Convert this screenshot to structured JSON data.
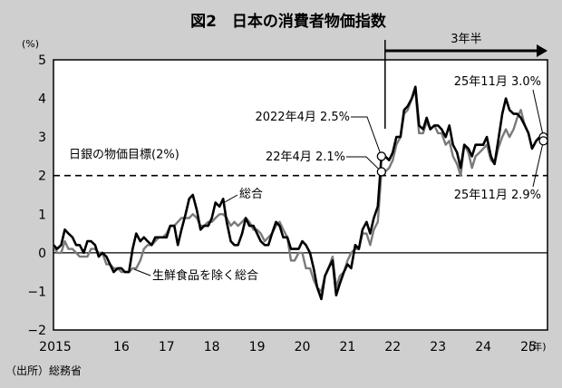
{
  "chart_data": {
    "type": "line",
    "title": "図2　日本の消費者物価指数",
    "ylabel": "(%)",
    "xlabel": "(年)",
    "source": "（出所）総務省",
    "ylim": [
      -2,
      5
    ],
    "xlim": [
      2015.0,
      2025.92
    ],
    "y_ticks": [
      -2,
      -1,
      0,
      1,
      2,
      3,
      4,
      5
    ],
    "y_tick_labels": [
      "−2",
      "−1",
      "0",
      "1",
      "2",
      "3",
      "4",
      "5"
    ],
    "x_tick_labels": [
      {
        "x": 2015.0,
        "label": "2015"
      },
      {
        "x": 2016.0,
        "label": "16"
      },
      {
        "x": 2017.0,
        "label": "17"
      },
      {
        "x": 2018.0,
        "label": "18"
      },
      {
        "x": 2019.0,
        "label": "19"
      },
      {
        "x": 2020.0,
        "label": "20"
      },
      {
        "x": 2021.0,
        "label": "21"
      },
      {
        "x": 2022.0,
        "label": "22"
      },
      {
        "x": 2023.0,
        "label": "23"
      },
      {
        "x": 2024.0,
        "label": "24"
      },
      {
        "x": 2025.0,
        "label": "25"
      }
    ],
    "reference_line": {
      "y": 2,
      "label": "日銀の物価目標(2%)"
    },
    "arrow": {
      "label": "3年半",
      "from": 2022.33,
      "to": 2025.92
    },
    "series": [
      {
        "name": "総合",
        "color": "#000000",
        "points": [
          [
            2015.0,
            0.2
          ],
          [
            2015.08,
            0.1
          ],
          [
            2015.17,
            0.2
          ],
          [
            2015.25,
            0.6
          ],
          [
            2015.33,
            0.5
          ],
          [
            2015.42,
            0.4
          ],
          [
            2015.5,
            0.2
          ],
          [
            2015.58,
            0.2
          ],
          [
            2015.67,
            0.0
          ],
          [
            2015.75,
            0.3
          ],
          [
            2015.83,
            0.3
          ],
          [
            2015.92,
            0.2
          ],
          [
            2016.0,
            -0.1
          ],
          [
            2016.08,
            0.0
          ],
          [
            2016.17,
            -0.1
          ],
          [
            2016.25,
            -0.3
          ],
          [
            2016.33,
            -0.5
          ],
          [
            2016.42,
            -0.4
          ],
          [
            2016.5,
            -0.4
          ],
          [
            2016.58,
            -0.5
          ],
          [
            2016.67,
            -0.5
          ],
          [
            2016.75,
            0.1
          ],
          [
            2016.83,
            0.5
          ],
          [
            2016.92,
            0.3
          ],
          [
            2017.0,
            0.4
          ],
          [
            2017.08,
            0.3
          ],
          [
            2017.17,
            0.2
          ],
          [
            2017.25,
            0.4
          ],
          [
            2017.33,
            0.4
          ],
          [
            2017.42,
            0.4
          ],
          [
            2017.5,
            0.4
          ],
          [
            2017.58,
            0.7
          ],
          [
            2017.67,
            0.7
          ],
          [
            2017.75,
            0.2
          ],
          [
            2017.83,
            0.6
          ],
          [
            2017.92,
            1.0
          ],
          [
            2018.0,
            1.4
          ],
          [
            2018.08,
            1.5
          ],
          [
            2018.17,
            1.1
          ],
          [
            2018.25,
            0.6
          ],
          [
            2018.33,
            0.7
          ],
          [
            2018.42,
            0.7
          ],
          [
            2018.5,
            0.9
          ],
          [
            2018.58,
            1.3
          ],
          [
            2018.67,
            1.2
          ],
          [
            2018.75,
            1.4
          ],
          [
            2018.83,
            0.8
          ],
          [
            2018.92,
            0.3
          ],
          [
            2019.0,
            0.2
          ],
          [
            2019.08,
            0.2
          ],
          [
            2019.17,
            0.5
          ],
          [
            2019.25,
            0.9
          ],
          [
            2019.33,
            0.7
          ],
          [
            2019.42,
            0.7
          ],
          [
            2019.5,
            0.5
          ],
          [
            2019.58,
            0.3
          ],
          [
            2019.67,
            0.2
          ],
          [
            2019.75,
            0.2
          ],
          [
            2019.83,
            0.5
          ],
          [
            2019.92,
            0.8
          ],
          [
            2020.0,
            0.7
          ],
          [
            2020.08,
            0.4
          ],
          [
            2020.17,
            0.4
          ],
          [
            2020.25,
            0.1
          ],
          [
            2020.33,
            0.1
          ],
          [
            2020.42,
            0.1
          ],
          [
            2020.5,
            0.3
          ],
          [
            2020.58,
            0.2
          ],
          [
            2020.67,
            0.0
          ],
          [
            2020.75,
            -0.4
          ],
          [
            2020.83,
            -0.9
          ],
          [
            2020.92,
            -1.2
          ],
          [
            2021.0,
            -0.6
          ],
          [
            2021.08,
            -0.4
          ],
          [
            2021.17,
            -0.2
          ],
          [
            2021.25,
            -1.1
          ],
          [
            2021.33,
            -0.8
          ],
          [
            2021.42,
            -0.5
          ],
          [
            2021.5,
            -0.3
          ],
          [
            2021.58,
            -0.4
          ],
          [
            2021.67,
            0.2
          ],
          [
            2021.75,
            0.1
          ],
          [
            2021.83,
            0.6
          ],
          [
            2021.92,
            0.8
          ],
          [
            2022.0,
            0.5
          ],
          [
            2022.08,
            0.9
          ],
          [
            2022.17,
            1.2
          ],
          [
            2022.25,
            2.5
          ],
          [
            2022.33,
            2.5
          ],
          [
            2022.42,
            2.4
          ],
          [
            2022.5,
            2.6
          ],
          [
            2022.58,
            3.0
          ],
          [
            2022.67,
            3.0
          ],
          [
            2022.75,
            3.7
          ],
          [
            2022.83,
            3.8
          ],
          [
            2022.92,
            4.0
          ],
          [
            2023.0,
            4.3
          ],
          [
            2023.08,
            3.3
          ],
          [
            2023.17,
            3.2
          ],
          [
            2023.25,
            3.5
          ],
          [
            2023.33,
            3.2
          ],
          [
            2023.42,
            3.3
          ],
          [
            2023.5,
            3.3
          ],
          [
            2023.58,
            3.2
          ],
          [
            2023.67,
            3.0
          ],
          [
            2023.75,
            3.3
          ],
          [
            2023.83,
            2.8
          ],
          [
            2023.92,
            2.6
          ],
          [
            2024.0,
            2.2
          ],
          [
            2024.08,
            2.8
          ],
          [
            2024.17,
            2.7
          ],
          [
            2024.25,
            2.5
          ],
          [
            2024.33,
            2.8
          ],
          [
            2024.42,
            2.8
          ],
          [
            2024.5,
            2.8
          ],
          [
            2024.58,
            3.0
          ],
          [
            2024.67,
            2.5
          ],
          [
            2024.75,
            2.3
          ],
          [
            2024.83,
            2.9
          ],
          [
            2024.92,
            3.6
          ],
          [
            2025.0,
            4.0
          ],
          [
            2025.08,
            3.7
          ],
          [
            2025.17,
            3.6
          ],
          [
            2025.25,
            3.6
          ],
          [
            2025.33,
            3.5
          ],
          [
            2025.42,
            3.3
          ],
          [
            2025.5,
            3.1
          ],
          [
            2025.58,
            2.7
          ],
          [
            2025.67,
            2.9
          ],
          [
            2025.75,
            3.0
          ],
          [
            2025.83,
            3.0
          ]
        ]
      },
      {
        "name": "生鮮食品を除く総合",
        "color": "#7a7a7a",
        "points": [
          [
            2015.0,
            0.2
          ],
          [
            2015.08,
            0.0
          ],
          [
            2015.17,
            0.0
          ],
          [
            2015.25,
            0.3
          ],
          [
            2015.33,
            0.1
          ],
          [
            2015.42,
            0.1
          ],
          [
            2015.5,
            0.0
          ],
          [
            2015.58,
            -0.1
          ],
          [
            2015.67,
            -0.1
          ],
          [
            2015.75,
            -0.1
          ],
          [
            2015.83,
            0.1
          ],
          [
            2015.92,
            0.1
          ],
          [
            2016.0,
            0.0
          ],
          [
            2016.08,
            0.0
          ],
          [
            2016.17,
            -0.3
          ],
          [
            2016.25,
            -0.3
          ],
          [
            2016.33,
            -0.4
          ],
          [
            2016.42,
            -0.4
          ],
          [
            2016.5,
            -0.5
          ],
          [
            2016.58,
            -0.5
          ],
          [
            2016.67,
            -0.5
          ],
          [
            2016.75,
            -0.4
          ],
          [
            2016.83,
            -0.4
          ],
          [
            2016.92,
            -0.2
          ],
          [
            2017.0,
            0.1
          ],
          [
            2017.08,
            0.2
          ],
          [
            2017.17,
            0.2
          ],
          [
            2017.25,
            0.3
          ],
          [
            2017.33,
            0.4
          ],
          [
            2017.42,
            0.4
          ],
          [
            2017.5,
            0.5
          ],
          [
            2017.58,
            0.7
          ],
          [
            2017.67,
            0.7
          ],
          [
            2017.75,
            0.8
          ],
          [
            2017.83,
            0.9
          ],
          [
            2017.92,
            0.9
          ],
          [
            2018.0,
            0.9
          ],
          [
            2018.08,
            1.0
          ],
          [
            2018.17,
            0.9
          ],
          [
            2018.25,
            0.7
          ],
          [
            2018.33,
            0.7
          ],
          [
            2018.42,
            0.8
          ],
          [
            2018.5,
            0.8
          ],
          [
            2018.58,
            0.9
          ],
          [
            2018.67,
            1.0
          ],
          [
            2018.75,
            1.0
          ],
          [
            2018.83,
            0.9
          ],
          [
            2018.92,
            0.7
          ],
          [
            2019.0,
            0.8
          ],
          [
            2019.08,
            0.7
          ],
          [
            2019.17,
            0.8
          ],
          [
            2019.25,
            0.9
          ],
          [
            2019.33,
            0.8
          ],
          [
            2019.42,
            0.6
          ],
          [
            2019.5,
            0.6
          ],
          [
            2019.58,
            0.5
          ],
          [
            2019.67,
            0.3
          ],
          [
            2019.75,
            0.4
          ],
          [
            2019.83,
            0.5
          ],
          [
            2019.92,
            0.7
          ],
          [
            2020.0,
            0.8
          ],
          [
            2020.08,
            0.6
          ],
          [
            2020.17,
            0.4
          ],
          [
            2020.25,
            -0.2
          ],
          [
            2020.33,
            -0.2
          ],
          [
            2020.42,
            0.0
          ],
          [
            2020.5,
            0.0
          ],
          [
            2020.58,
            -0.4
          ],
          [
            2020.67,
            -0.4
          ],
          [
            2020.75,
            -0.7
          ],
          [
            2020.83,
            -0.9
          ],
          [
            2020.92,
            -1.0
          ],
          [
            2021.0,
            -0.6
          ],
          [
            2021.08,
            -0.4
          ],
          [
            2021.17,
            -0.1
          ],
          [
            2021.25,
            -0.9
          ],
          [
            2021.33,
            -0.6
          ],
          [
            2021.42,
            -0.5
          ],
          [
            2021.5,
            -0.2
          ],
          [
            2021.58,
            0.0
          ],
          [
            2021.67,
            0.1
          ],
          [
            2021.75,
            0.1
          ],
          [
            2021.83,
            0.5
          ],
          [
            2021.92,
            0.5
          ],
          [
            2022.0,
            0.2
          ],
          [
            2022.08,
            0.6
          ],
          [
            2022.17,
            0.8
          ],
          [
            2022.25,
            2.1
          ],
          [
            2022.33,
            2.1
          ],
          [
            2022.42,
            2.2
          ],
          [
            2022.5,
            2.4
          ],
          [
            2022.58,
            2.8
          ],
          [
            2022.67,
            3.0
          ],
          [
            2022.75,
            3.6
          ],
          [
            2022.83,
            3.7
          ],
          [
            2022.92,
            4.0
          ],
          [
            2023.0,
            4.2
          ],
          [
            2023.08,
            3.1
          ],
          [
            2023.17,
            3.1
          ],
          [
            2023.25,
            3.4
          ],
          [
            2023.33,
            3.2
          ],
          [
            2023.42,
            3.3
          ],
          [
            2023.5,
            3.1
          ],
          [
            2023.58,
            3.1
          ],
          [
            2023.67,
            2.8
          ],
          [
            2023.75,
            2.9
          ],
          [
            2023.83,
            2.5
          ],
          [
            2023.92,
            2.3
          ],
          [
            2024.0,
            2.0
          ],
          [
            2024.08,
            2.8
          ],
          [
            2024.17,
            2.6
          ],
          [
            2024.25,
            2.2
          ],
          [
            2024.33,
            2.5
          ],
          [
            2024.42,
            2.6
          ],
          [
            2024.5,
            2.7
          ],
          [
            2024.58,
            2.8
          ],
          [
            2024.67,
            2.4
          ],
          [
            2024.75,
            2.3
          ],
          [
            2024.83,
            2.7
          ],
          [
            2024.92,
            3.0
          ],
          [
            2025.0,
            3.2
          ],
          [
            2025.08,
            3.0
          ],
          [
            2025.17,
            3.2
          ],
          [
            2025.25,
            3.5
          ],
          [
            2025.33,
            3.7
          ],
          [
            2025.42,
            3.3
          ],
          [
            2025.5,
            3.1
          ],
          [
            2025.58,
            2.7
          ],
          [
            2025.67,
            2.9
          ],
          [
            2025.75,
            3.0
          ],
          [
            2025.83,
            2.9
          ]
        ]
      }
    ],
    "annotations": [
      {
        "text": "2022年4月 2.5%",
        "x": 2022.25,
        "y": 2.5
      },
      {
        "text": "22年4月 2.1%",
        "x": 2022.25,
        "y": 2.1
      },
      {
        "text": "25年11月 3.0%",
        "x": 2025.83,
        "y": 3.0
      },
      {
        "text": "25年11月 2.9%",
        "x": 2025.83,
        "y": 2.9
      }
    ],
    "series_labels": [
      "総合",
      "生鮮食品を除く総合"
    ]
  }
}
